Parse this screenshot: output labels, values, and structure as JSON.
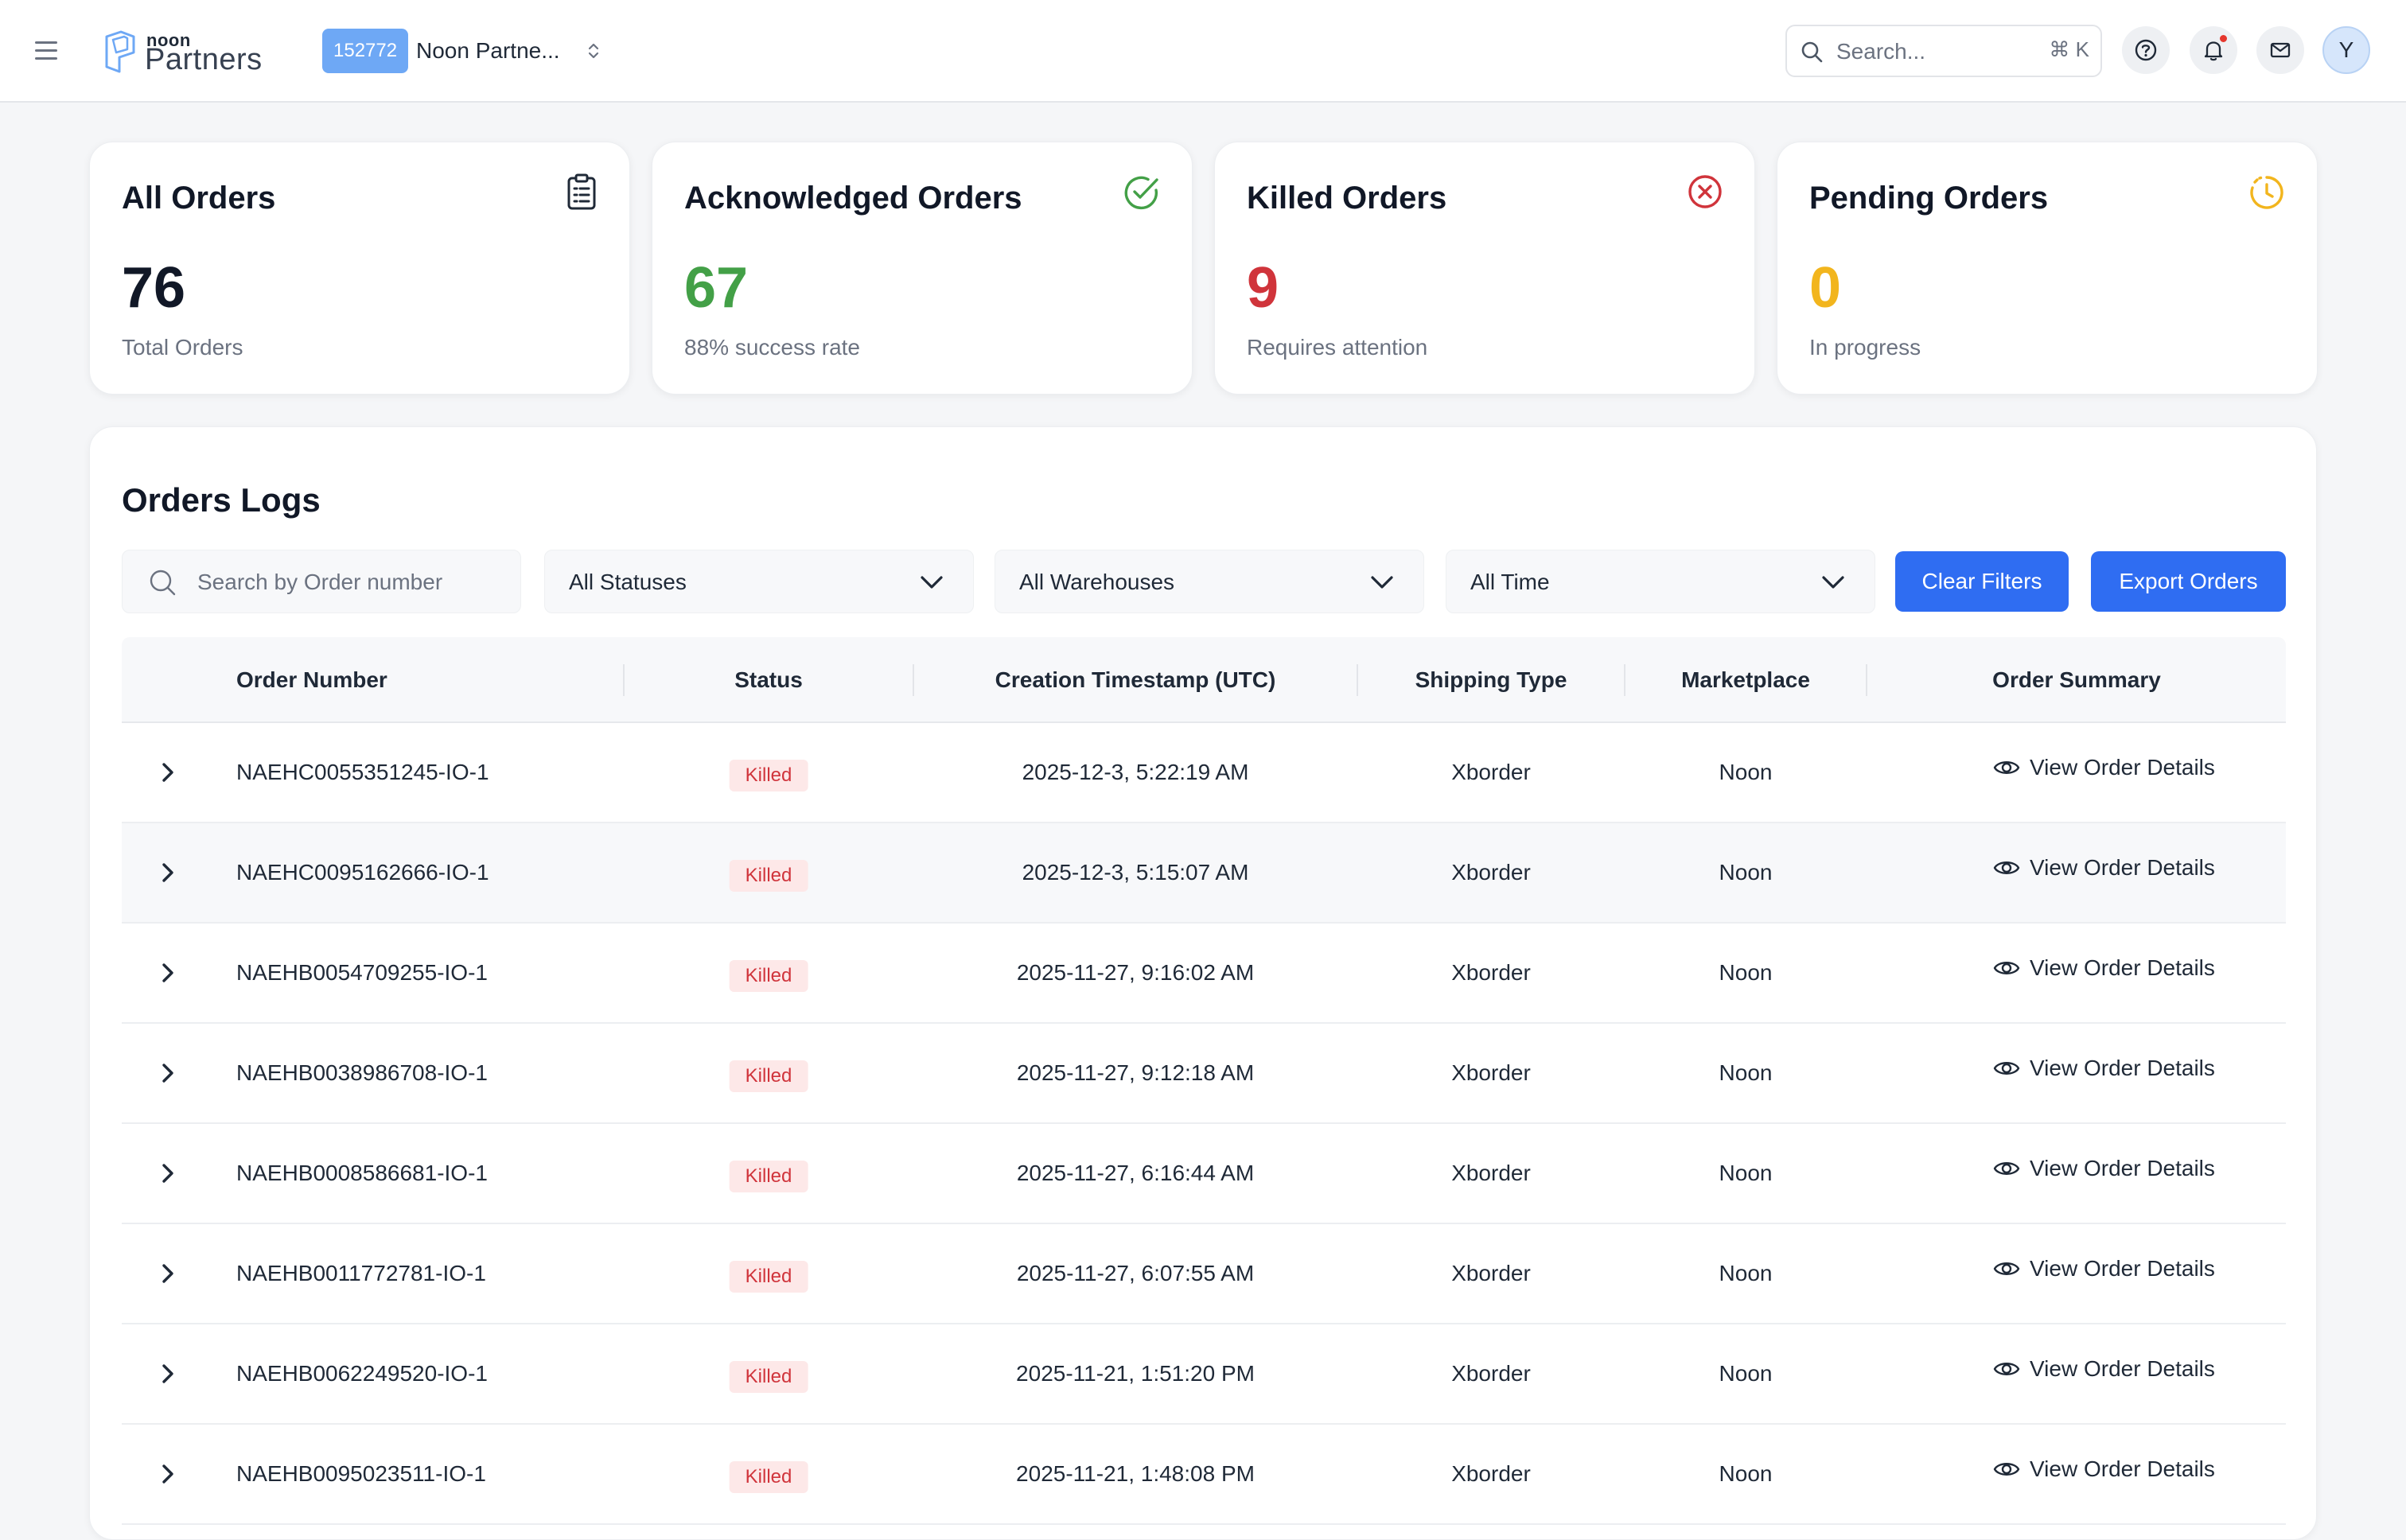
{
  "header": {
    "logo_top": "noon",
    "logo_bottom": "Partners",
    "account_id": "152772",
    "account_name": "Noon Partne...",
    "search_placeholder": "Search...",
    "search_shortcut": "⌘ K",
    "avatar_initial": "Y"
  },
  "stats": [
    {
      "title": "All Orders",
      "value": "76",
      "sub": "Total Orders",
      "color": "#111827",
      "icon": "clipboard-list-icon"
    },
    {
      "title": "Acknowledged Orders",
      "value": "67",
      "sub": "88% success rate",
      "color": "#43a047",
      "icon": "check-circle-icon"
    },
    {
      "title": "Killed Orders",
      "value": "9",
      "sub": "Requires attention",
      "color": "#d0343b",
      "icon": "x-circle-icon"
    },
    {
      "title": "Pending Orders",
      "value": "0",
      "sub": "In progress",
      "color": "#f2b51d",
      "icon": "clock-icon"
    }
  ],
  "logs": {
    "title": "Orders Logs",
    "search_placeholder": "Search by Order number",
    "status_filter": "All Statuses",
    "warehouse_filter": "All Warehouses",
    "time_filter": "All Time",
    "clear_label": "Clear Filters",
    "export_label": "Export Orders",
    "columns": [
      "Order Number",
      "Status",
      "Creation Timestamp (UTC)",
      "Shipping Type",
      "Marketplace",
      "Order Summary"
    ],
    "rows": [
      {
        "order": "NAEHC0055351245-IO-1",
        "status": "Killed",
        "timestamp": "2025-12-3, 5:22:19 AM",
        "shipping": "Xborder",
        "marketplace": "Noon",
        "summary": "View Order Details"
      },
      {
        "order": "NAEHC0095162666-IO-1",
        "status": "Killed",
        "timestamp": "2025-12-3, 5:15:07 AM",
        "shipping": "Xborder",
        "marketplace": "Noon",
        "summary": "View Order Details"
      },
      {
        "order": "NAEHB0054709255-IO-1",
        "status": "Killed",
        "timestamp": "2025-11-27, 9:16:02 AM",
        "shipping": "Xborder",
        "marketplace": "Noon",
        "summary": "View Order Details"
      },
      {
        "order": "NAEHB0038986708-IO-1",
        "status": "Killed",
        "timestamp": "2025-11-27, 9:12:18 AM",
        "shipping": "Xborder",
        "marketplace": "Noon",
        "summary": "View Order Details"
      },
      {
        "order": "NAEHB0008586681-IO-1",
        "status": "Killed",
        "timestamp": "2025-11-27, 6:16:44 AM",
        "shipping": "Xborder",
        "marketplace": "Noon",
        "summary": "View Order Details"
      },
      {
        "order": "NAEHB0011772781-IO-1",
        "status": "Killed",
        "timestamp": "2025-11-27, 6:07:55 AM",
        "shipping": "Xborder",
        "marketplace": "Noon",
        "summary": "View Order Details"
      },
      {
        "order": "NAEHB0062249520-IO-1",
        "status": "Killed",
        "timestamp": "2025-11-21, 1:51:20 PM",
        "shipping": "Xborder",
        "marketplace": "Noon",
        "summary": "View Order Details"
      },
      {
        "order": "NAEHB0095023511-IO-1",
        "status": "Killed",
        "timestamp": "2025-11-21, 1:48:08 PM",
        "shipping": "Xborder",
        "marketplace": "Noon",
        "summary": "View Order Details"
      }
    ]
  }
}
